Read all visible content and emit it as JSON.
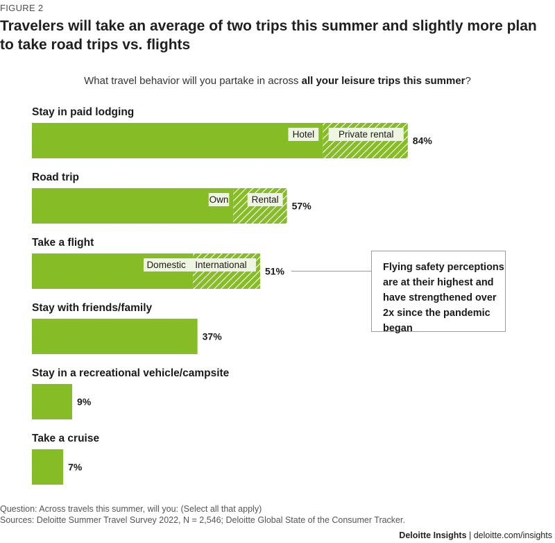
{
  "figure_label": "FIGURE 2",
  "title": "Travelers will take an average of two trips this summer and slightly more plan to take road trips vs. flights",
  "question_prefix": "What travel behavior will you partake in across ",
  "question_bold": "all your leisure trips this summer",
  "question_suffix": "?",
  "callout_text": "Flying safety perceptions are at their highest and have strengthened over 2x since the pandemic began",
  "footnote_question": "Question: Across travels this summer, will you: (Select all that apply)",
  "footnote_sources": "Sources: Deloitte Summer Travel Survey 2022, N = 2,546; Deloitte Global State of the Consumer Tracker.",
  "footer_brand": "Deloitte Insights",
  "footer_separator": " | ",
  "footer_url": "deloitte.com/insights",
  "colors": {
    "bar": "#86bc25",
    "hatch_line": "#ffffff",
    "segment_label_bg": "#eef5e1",
    "callout_border": "#9a9a9a"
  },
  "chart_data": {
    "type": "bar",
    "orientation": "horizontal",
    "stacked": true,
    "xlim": [
      0,
      100
    ],
    "value_suffix": "%",
    "categories": [
      "Stay in paid lodging",
      "Road trip",
      "Take a flight",
      "Stay with friends/family",
      "Stay in a recreational vehicle/campsite",
      "Take a cruise"
    ],
    "totals": [
      84,
      57,
      51,
      37,
      9,
      7
    ],
    "segments": [
      [
        {
          "label": "Hotel",
          "value": 65,
          "pattern": "solid"
        },
        {
          "label": "Private rental",
          "value": 19,
          "pattern": "hatched"
        }
      ],
      [
        {
          "label": "Own",
          "value": 45,
          "pattern": "solid"
        },
        {
          "label": "Rental",
          "value": 12,
          "pattern": "hatched"
        }
      ],
      [
        {
          "label": "Domestic",
          "value": 36,
          "pattern": "solid"
        },
        {
          "label": "International",
          "value": 15,
          "pattern": "hatched"
        }
      ],
      [
        {
          "label": "",
          "value": 37,
          "pattern": "solid"
        }
      ],
      [
        {
          "label": "",
          "value": 9,
          "pattern": "solid"
        }
      ],
      [
        {
          "label": "",
          "value": 7,
          "pattern": "solid"
        }
      ]
    ],
    "annotated_category_index": 2
  }
}
